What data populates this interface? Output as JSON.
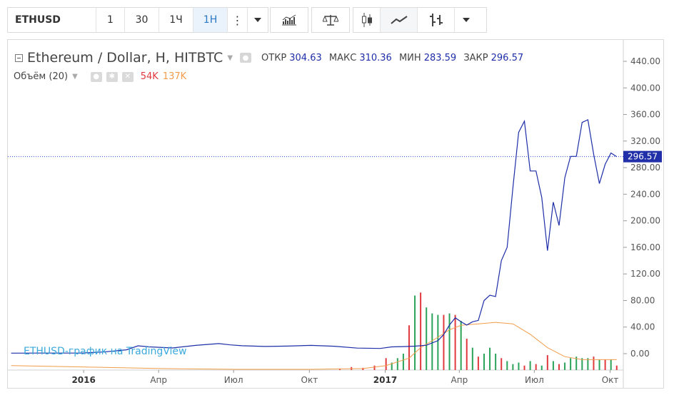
{
  "toolbar": {
    "symbol": "ETHUSD",
    "intervals": [
      "1",
      "30",
      "1Ч",
      "1Н"
    ],
    "active_interval": "1Н",
    "more_label": "⋮"
  },
  "legend": {
    "title": "Ethereum / Dollar, Н, HITBTC",
    "open_label": "ОТКР",
    "open_value": "304.63",
    "high_label": "МАКС",
    "high_value": "310.36",
    "low_label": "МИН",
    "low_value": "283.59",
    "close_label": "ЗАКР",
    "close_value": "296.57",
    "volume_label": "Объём (20)",
    "volume_value": "54K",
    "volume_ma_value": "137K"
  },
  "watermark": "ETHUSD-график на TradingView",
  "price_axis": {
    "ticks": [
      "440.00",
      "400.00",
      "360.00",
      "320.00",
      "280.00",
      "240.00",
      "200.00",
      "160.00",
      "120.00",
      "80.00",
      "40.00",
      "0.00"
    ],
    "last_price": "296.57"
  },
  "time_axis": {
    "ticks": [
      "2016",
      "Апр",
      "Июл",
      "Окт",
      "2017",
      "Апр",
      "Июл",
      "Окт"
    ]
  },
  "colors": {
    "price_line": "#1e2ea8",
    "vol_up": "#2ca35a",
    "vol_down": "#e0393e",
    "vol_ma": "#f39c4a",
    "active": "#2b78c5"
  },
  "chart_data": {
    "type": "line",
    "price_series": [
      [
        "2015-10-05",
        0.7
      ],
      [
        "2015-11-02",
        0.9
      ],
      [
        "2015-11-30",
        0.9
      ],
      [
        "2015-12-28",
        0.9
      ],
      [
        "2016-01-25",
        2.5
      ],
      [
        "2016-02-22",
        5.8
      ],
      [
        "2016-03-07",
        11.8
      ],
      [
        "2016-03-21",
        10.2
      ],
      [
        "2016-04-18",
        8.6
      ],
      [
        "2016-05-16",
        12.5
      ],
      [
        "2016-06-13",
        15.1
      ],
      [
        "2016-06-27",
        13.2
      ],
      [
        "2016-07-11",
        11.9
      ],
      [
        "2016-08-08",
        10.8
      ],
      [
        "2016-09-05",
        11.4
      ],
      [
        "2016-10-03",
        12.5
      ],
      [
        "2016-10-31",
        11.2
      ],
      [
        "2016-11-28",
        8.4
      ],
      [
        "2016-12-26",
        7.8
      ],
      [
        "2017-01-09",
        10.2
      ],
      [
        "2017-01-23",
        10.6
      ],
      [
        "2017-02-06",
        11.3
      ],
      [
        "2017-02-20",
        12.7
      ],
      [
        "2017-03-06",
        19.5
      ],
      [
        "2017-03-13",
        28.8
      ],
      [
        "2017-03-20",
        43.0
      ],
      [
        "2017-03-27",
        54.0
      ],
      [
        "2017-04-03",
        48.0
      ],
      [
        "2017-04-10",
        43.0
      ],
      [
        "2017-04-17",
        48.0
      ],
      [
        "2017-04-24",
        50.0
      ],
      [
        "2017-05-01",
        80.0
      ],
      [
        "2017-05-08",
        88.0
      ],
      [
        "2017-05-15",
        86.0
      ],
      [
        "2017-05-22",
        140.0
      ],
      [
        "2017-05-29",
        160.0
      ],
      [
        "2017-06-05",
        250.0
      ],
      [
        "2017-06-12",
        333.0
      ],
      [
        "2017-06-19",
        350.0
      ],
      [
        "2017-06-26",
        275.0
      ],
      [
        "2017-07-03",
        275.0
      ],
      [
        "2017-07-10",
        235.0
      ],
      [
        "2017-07-17",
        155.0
      ],
      [
        "2017-07-24",
        228.0
      ],
      [
        "2017-07-31",
        193.0
      ],
      [
        "2017-08-07",
        265.0
      ],
      [
        "2017-08-14",
        297.0
      ],
      [
        "2017-08-21",
        297.0
      ],
      [
        "2017-08-28",
        348.0
      ],
      [
        "2017-09-04",
        352.0
      ],
      [
        "2017-09-11",
        300.0
      ],
      [
        "2017-09-18",
        256.0
      ],
      [
        "2017-09-25",
        285.0
      ],
      [
        "2017-10-02",
        302.0
      ],
      [
        "2017-10-09",
        296.57
      ]
    ],
    "volume_bars": [
      [
        "2016-11-07",
        2,
        "down"
      ],
      [
        "2016-11-21",
        4,
        "down"
      ],
      [
        "2016-12-05",
        3,
        "down"
      ],
      [
        "2016-12-19",
        6,
        "down"
      ],
      [
        "2017-01-02",
        16,
        "down"
      ],
      [
        "2017-01-09",
        10,
        "up"
      ],
      [
        "2017-01-16",
        16,
        "up"
      ],
      [
        "2017-01-23",
        22,
        "up"
      ],
      [
        "2017-01-30",
        60,
        "down"
      ],
      [
        "2017-02-06",
        100,
        "up"
      ],
      [
        "2017-02-13",
        104,
        "down"
      ],
      [
        "2017-02-20",
        84,
        "up"
      ],
      [
        "2017-02-27",
        76,
        "up"
      ],
      [
        "2017-03-06",
        74,
        "up"
      ],
      [
        "2017-03-13",
        74,
        "down"
      ],
      [
        "2017-03-20",
        76,
        "up"
      ],
      [
        "2017-03-27",
        74,
        "down"
      ],
      [
        "2017-04-03",
        66,
        "up"
      ],
      [
        "2017-04-10",
        42,
        "down"
      ],
      [
        "2017-04-17",
        30,
        "up"
      ],
      [
        "2017-04-24",
        18,
        "down"
      ],
      [
        "2017-05-01",
        22,
        "up"
      ],
      [
        "2017-05-08",
        30,
        "up"
      ],
      [
        "2017-05-15",
        22,
        "up"
      ],
      [
        "2017-05-22",
        16,
        "down"
      ],
      [
        "2017-05-29",
        12,
        "up"
      ],
      [
        "2017-06-05",
        8,
        "up"
      ],
      [
        "2017-06-12",
        10,
        "up"
      ],
      [
        "2017-06-19",
        6,
        "down"
      ],
      [
        "2017-06-26",
        12,
        "up"
      ],
      [
        "2017-07-03",
        8,
        "down"
      ],
      [
        "2017-07-10",
        6,
        "up"
      ],
      [
        "2017-07-17",
        20,
        "down"
      ],
      [
        "2017-07-24",
        12,
        "up"
      ],
      [
        "2017-07-31",
        8,
        "down"
      ],
      [
        "2017-08-07",
        10,
        "up"
      ],
      [
        "2017-08-14",
        16,
        "up"
      ],
      [
        "2017-08-21",
        18,
        "up"
      ],
      [
        "2017-08-28",
        16,
        "up"
      ],
      [
        "2017-09-04",
        16,
        "up"
      ],
      [
        "2017-09-11",
        18,
        "down"
      ],
      [
        "2017-09-18",
        14,
        "up"
      ],
      [
        "2017-09-25",
        14,
        "down"
      ],
      [
        "2017-10-02",
        14,
        "up"
      ],
      [
        "2017-10-09",
        6,
        "down"
      ]
    ],
    "volume_ma": [
      [
        "2015-10-05",
        6
      ],
      [
        "2016-01-04",
        4
      ],
      [
        "2016-04-04",
        2
      ],
      [
        "2016-07-04",
        1
      ],
      [
        "2016-10-03",
        1
      ],
      [
        "2016-12-05",
        2
      ],
      [
        "2017-01-02",
        6
      ],
      [
        "2017-01-30",
        16
      ],
      [
        "2017-02-13",
        30
      ],
      [
        "2017-03-06",
        44
      ],
      [
        "2017-03-20",
        54
      ],
      [
        "2017-04-03",
        60
      ],
      [
        "2017-04-24",
        62
      ],
      [
        "2017-05-15",
        64
      ],
      [
        "2017-06-05",
        62
      ],
      [
        "2017-06-26",
        48
      ],
      [
        "2017-07-17",
        30
      ],
      [
        "2017-08-07",
        18
      ],
      [
        "2017-08-28",
        14
      ],
      [
        "2017-09-18",
        14
      ],
      [
        "2017-10-09",
        14
      ]
    ],
    "ylim": [
      -25,
      470
    ],
    "last_price": 296.57
  }
}
